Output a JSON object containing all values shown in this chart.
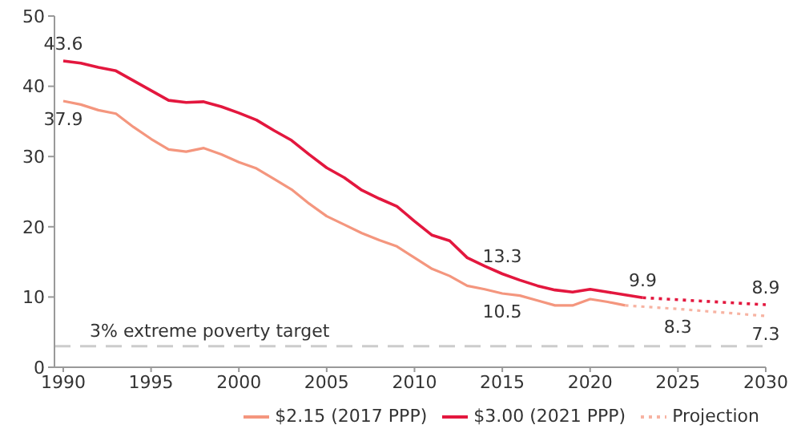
{
  "chart_data": {
    "type": "line",
    "xlim": [
      1989.5,
      2030
    ],
    "xticks": [
      1990,
      1995,
      2000,
      2005,
      2010,
      2015,
      2020,
      2025,
      2030
    ],
    "ylim": [
      0,
      50
    ],
    "yticks": [
      0,
      10,
      20,
      30,
      40,
      50
    ],
    "grid": false,
    "legend": "bottom right",
    "marker": "none",
    "series": [
      {
        "name": "$2.15 (2017 PPP)",
        "color": "#f4967e",
        "line_style": "solid",
        "x": [
          1990,
          1991,
          1992,
          1993,
          1994,
          1995,
          1996,
          1997,
          1998,
          1999,
          2000,
          2001,
          2002,
          2003,
          2004,
          2005,
          2006,
          2007,
          2008,
          2009,
          2010,
          2011,
          2012,
          2013,
          2014,
          2015,
          2016,
          2017,
          2018,
          2019,
          2020,
          2021,
          2022
        ],
        "values": [
          37.9,
          37.4,
          36.6,
          36.1,
          34.2,
          32.5,
          31.0,
          30.7,
          31.2,
          30.3,
          29.2,
          28.3,
          26.8,
          25.3,
          23.3,
          21.5,
          20.3,
          19.1,
          18.1,
          17.2,
          15.6,
          14.0,
          13.0,
          11.6,
          11.1,
          10.5,
          10.2,
          9.5,
          8.8,
          8.8,
          9.7,
          9.3,
          8.8
        ],
        "value_labels": [
          "37.9",
          null,
          null,
          null,
          null,
          null,
          null,
          null,
          null,
          null,
          null,
          null,
          null,
          null,
          null,
          null,
          null,
          null,
          null,
          null,
          null,
          null,
          null,
          null,
          null,
          "10.5",
          null,
          null,
          null,
          null,
          null,
          null,
          null
        ]
      },
      {
        "name": "$3.00 (2021 PPP)",
        "color": "#e3173e",
        "line_style": "solid",
        "x": [
          1990,
          1991,
          1992,
          1993,
          1994,
          1995,
          1996,
          1997,
          1998,
          1999,
          2000,
          2001,
          2002,
          2003,
          2004,
          2005,
          2006,
          2007,
          2008,
          2009,
          2010,
          2011,
          2012,
          2013,
          2014,
          2015,
          2016,
          2017,
          2018,
          2019,
          2020,
          2021,
          2022,
          2023
        ],
        "values": [
          43.6,
          43.3,
          42.7,
          42.2,
          40.8,
          39.4,
          38.0,
          37.7,
          37.8,
          37.1,
          36.2,
          35.2,
          33.7,
          32.3,
          30.3,
          28.4,
          27.0,
          25.2,
          24.0,
          22.9,
          20.8,
          18.8,
          18.0,
          15.6,
          14.4,
          13.3,
          12.4,
          11.6,
          11.0,
          10.7,
          11.1,
          10.7,
          10.3,
          9.9
        ],
        "value_labels": [
          "43.6",
          null,
          null,
          null,
          null,
          null,
          null,
          null,
          null,
          null,
          null,
          null,
          null,
          null,
          null,
          null,
          null,
          null,
          null,
          null,
          null,
          null,
          null,
          null,
          null,
          "13.3",
          null,
          null,
          null,
          null,
          null,
          null,
          null,
          "9.9"
        ]
      },
      {
        "name": "Projection",
        "color": "#f7b3a2",
        "line_style": "dotted",
        "x": [
          2022,
          2025,
          2030
        ],
        "values": [
          8.8,
          8.3,
          7.3
        ],
        "value_labels": [
          null,
          "8.3",
          "7.3"
        ]
      },
      {
        "color": "#e3173e",
        "line_style": "dotted",
        "x": [
          2023,
          2030
        ],
        "values": [
          9.9,
          8.9
        ],
        "value_labels": [
          null,
          "8.9"
        ]
      }
    ],
    "ref_lines": [
      {
        "axis": "y",
        "value": 3,
        "label": "3% extreme poverty target",
        "color": "#cccccc",
        "line_style": "dashed"
      }
    ]
  }
}
